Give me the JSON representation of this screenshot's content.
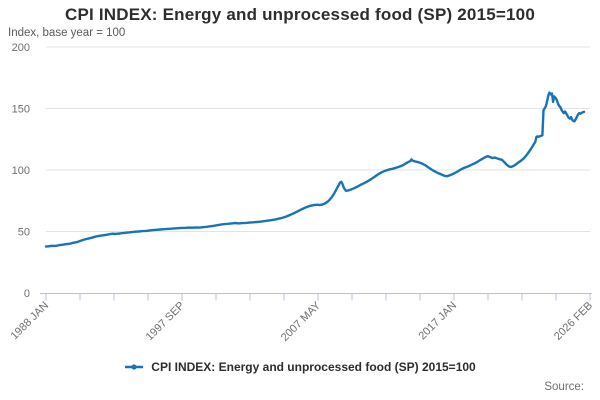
{
  "header": {
    "title": "CPI INDEX: Energy and unprocessed food (SP) 2015=100",
    "subtitle": "Index, base year = 100"
  },
  "legend": {
    "label": "CPI INDEX: Energy and unprocessed food (SP) 2015=100"
  },
  "footer": {
    "source_label": "Source:"
  },
  "colors": {
    "line": "#1774b6",
    "grid": "#e3e3e3",
    "axis": "#b4c3dc",
    "title_text": "#2e2e2e",
    "muted_text": "#6f6f6f"
  },
  "chart_data": {
    "type": "line",
    "title": "CPI INDEX: Energy and unprocessed food (SP) 2015=100",
    "xlabel": "",
    "ylabel": "Index, base year = 100",
    "ylim": [
      0,
      200
    ],
    "yticks": [
      0,
      50,
      100,
      150,
      200
    ],
    "xlim": [
      1988.0,
      2026.083
    ],
    "x_tick_labels": [
      "1988 JAN",
      "1997 SEP",
      "2007 MAY",
      "2017 JAN",
      "2026 FEB"
    ],
    "minor_ticks_between_labels": 3,
    "grid": "horizontal",
    "legend_position": "bottom",
    "series": [
      {
        "name": "CPI INDEX: Energy and unprocessed food (SP) 2015=100",
        "color": "#1774b6",
        "points": [
          [
            1988.0,
            37.8
          ],
          [
            1988.17,
            38.0
          ],
          [
            1988.33,
            38.2
          ],
          [
            1988.5,
            38.4
          ],
          [
            1988.67,
            38.3
          ],
          [
            1988.83,
            38.7
          ],
          [
            1989.0,
            39.0
          ],
          [
            1989.17,
            39.3
          ],
          [
            1989.33,
            39.6
          ],
          [
            1989.5,
            39.8
          ],
          [
            1989.67,
            40.1
          ],
          [
            1989.83,
            40.6
          ],
          [
            1990.0,
            41.0
          ],
          [
            1990.17,
            41.4
          ],
          [
            1990.33,
            42.0
          ],
          [
            1990.5,
            42.8
          ],
          [
            1990.67,
            43.4
          ],
          [
            1990.83,
            43.9
          ],
          [
            1991.0,
            44.4
          ],
          [
            1991.17,
            44.9
          ],
          [
            1991.33,
            45.4
          ],
          [
            1991.5,
            45.9
          ],
          [
            1991.67,
            46.3
          ],
          [
            1991.83,
            46.6
          ],
          [
            1992.0,
            46.9
          ],
          [
            1992.17,
            47.2
          ],
          [
            1992.33,
            47.5
          ],
          [
            1992.5,
            47.9
          ],
          [
            1992.67,
            48.2
          ],
          [
            1992.83,
            48.0
          ],
          [
            1993.0,
            48.2
          ],
          [
            1993.17,
            48.4
          ],
          [
            1993.33,
            48.7
          ],
          [
            1993.5,
            48.9
          ],
          [
            1993.67,
            49.1
          ],
          [
            1993.83,
            49.3
          ],
          [
            1994.0,
            49.5
          ],
          [
            1994.25,
            49.8
          ],
          [
            1994.5,
            50.0
          ],
          [
            1994.75,
            50.3
          ],
          [
            1995.0,
            50.5
          ],
          [
            1995.25,
            50.8
          ],
          [
            1995.5,
            51.1
          ],
          [
            1995.75,
            51.4
          ],
          [
            1996.0,
            51.6
          ],
          [
            1996.25,
            51.9
          ],
          [
            1996.5,
            52.1
          ],
          [
            1996.75,
            52.3
          ],
          [
            1997.0,
            52.5
          ],
          [
            1997.25,
            52.7
          ],
          [
            1997.5,
            52.9
          ],
          [
            1997.75,
            53.0
          ],
          [
            1998.0,
            53.2
          ],
          [
            1998.25,
            53.1
          ],
          [
            1998.5,
            53.3
          ],
          [
            1998.75,
            53.2
          ],
          [
            1999.0,
            53.5
          ],
          [
            1999.25,
            53.8
          ],
          [
            1999.5,
            54.2
          ],
          [
            1999.75,
            54.6
          ],
          [
            2000.0,
            55.1
          ],
          [
            2000.25,
            55.6
          ],
          [
            2000.5,
            56.0
          ],
          [
            2000.75,
            56.3
          ],
          [
            2001.0,
            56.6
          ],
          [
            2001.25,
            56.9
          ],
          [
            2001.5,
            56.6
          ],
          [
            2001.75,
            56.8
          ],
          [
            2002.0,
            57.0
          ],
          [
            2002.25,
            57.2
          ],
          [
            2002.5,
            57.5
          ],
          [
            2002.75,
            57.7
          ],
          [
            2003.0,
            58.0
          ],
          [
            2003.25,
            58.4
          ],
          [
            2003.5,
            58.8
          ],
          [
            2003.75,
            59.2
          ],
          [
            2004.0,
            59.7
          ],
          [
            2004.25,
            60.3
          ],
          [
            2004.5,
            61.0
          ],
          [
            2004.75,
            61.9
          ],
          [
            2005.0,
            63.0
          ],
          [
            2005.25,
            64.3
          ],
          [
            2005.5,
            65.7
          ],
          [
            2005.75,
            67.2
          ],
          [
            2006.0,
            68.6
          ],
          [
            2006.25,
            69.9
          ],
          [
            2006.5,
            70.9
          ],
          [
            2006.75,
            71.5
          ],
          [
            2007.0,
            71.8
          ],
          [
            2007.17,
            71.5
          ],
          [
            2007.33,
            71.9
          ],
          [
            2007.5,
            72.6
          ],
          [
            2007.67,
            73.8
          ],
          [
            2007.83,
            75.5
          ],
          [
            2008.0,
            77.8
          ],
          [
            2008.17,
            80.8
          ],
          [
            2008.33,
            84.3
          ],
          [
            2008.5,
            87.8
          ],
          [
            2008.58,
            89.8
          ],
          [
            2008.67,
            90.4
          ],
          [
            2008.75,
            88.9
          ],
          [
            2008.83,
            86.3
          ],
          [
            2008.92,
            84.2
          ],
          [
            2009.0,
            83.1
          ],
          [
            2009.17,
            83.4
          ],
          [
            2009.33,
            84.0
          ],
          [
            2009.5,
            84.8
          ],
          [
            2009.67,
            85.7
          ],
          [
            2009.83,
            86.7
          ],
          [
            2010.0,
            87.8
          ],
          [
            2010.25,
            89.2
          ],
          [
            2010.5,
            90.7
          ],
          [
            2010.75,
            92.4
          ],
          [
            2011.0,
            94.4
          ],
          [
            2011.25,
            96.4
          ],
          [
            2011.5,
            98.1
          ],
          [
            2011.75,
            99.4
          ],
          [
            2012.0,
            100.3
          ],
          [
            2012.25,
            101.0
          ],
          [
            2012.5,
            101.8
          ],
          [
            2012.75,
            102.8
          ],
          [
            2013.0,
            104.0
          ],
          [
            2013.17,
            105.2
          ],
          [
            2013.33,
            106.3
          ],
          [
            2013.5,
            107.2
          ],
          [
            2013.58,
            108.6
          ],
          [
            2013.67,
            107.6
          ],
          [
            2013.83,
            107.0
          ],
          [
            2014.0,
            106.6
          ],
          [
            2014.25,
            105.6
          ],
          [
            2014.5,
            104.2
          ],
          [
            2014.75,
            102.3
          ],
          [
            2015.0,
            100.3
          ],
          [
            2015.25,
            98.6
          ],
          [
            2015.5,
            97.2
          ],
          [
            2015.75,
            96.0
          ],
          [
            2015.92,
            95.2
          ],
          [
            2016.08,
            95.0
          ],
          [
            2016.25,
            95.6
          ],
          [
            2016.5,
            96.8
          ],
          [
            2016.75,
            98.4
          ],
          [
            2017.0,
            100.2
          ],
          [
            2017.25,
            101.6
          ],
          [
            2017.5,
            102.8
          ],
          [
            2017.75,
            104.0
          ],
          [
            2018.0,
            105.4
          ],
          [
            2018.25,
            107.0
          ],
          [
            2018.5,
            108.8
          ],
          [
            2018.75,
            110.4
          ],
          [
            2018.92,
            111.3
          ],
          [
            2019.08,
            110.6
          ],
          [
            2019.25,
            109.7
          ],
          [
            2019.42,
            110.2
          ],
          [
            2019.58,
            109.4
          ],
          [
            2019.75,
            108.8
          ],
          [
            2019.92,
            108.3
          ],
          [
            2020.08,
            106.5
          ],
          [
            2020.25,
            104.3
          ],
          [
            2020.42,
            102.8
          ],
          [
            2020.58,
            102.5
          ],
          [
            2020.75,
            103.4
          ],
          [
            2020.92,
            104.8
          ],
          [
            2021.08,
            106.2
          ],
          [
            2021.25,
            107.6
          ],
          [
            2021.42,
            109.2
          ],
          [
            2021.58,
            111.2
          ],
          [
            2021.75,
            113.8
          ],
          [
            2021.92,
            116.6
          ],
          [
            2022.08,
            119.6
          ],
          [
            2022.17,
            121.4
          ],
          [
            2022.25,
            122.6
          ],
          [
            2022.33,
            126.8
          ],
          [
            2022.42,
            127.3
          ],
          [
            2022.5,
            127.0
          ],
          [
            2022.58,
            127.5
          ],
          [
            2022.67,
            127.8
          ],
          [
            2022.75,
            128.2
          ],
          [
            2022.83,
            148.6
          ],
          [
            2022.92,
            150.3
          ],
          [
            2023.0,
            152.1
          ],
          [
            2023.08,
            155.9
          ],
          [
            2023.17,
            160.9
          ],
          [
            2023.25,
            162.9
          ],
          [
            2023.33,
            161.5
          ],
          [
            2023.42,
            162.2
          ],
          [
            2023.5,
            155.4
          ],
          [
            2023.58,
            159.8
          ],
          [
            2023.67,
            158.7
          ],
          [
            2023.75,
            157.0
          ],
          [
            2023.83,
            154.4
          ],
          [
            2023.92,
            152.2
          ],
          [
            2024.0,
            151.3
          ],
          [
            2024.08,
            149.1
          ],
          [
            2024.17,
            147.4
          ],
          [
            2024.25,
            146.2
          ],
          [
            2024.33,
            147.6
          ],
          [
            2024.42,
            146.0
          ],
          [
            2024.5,
            144.2
          ],
          [
            2024.58,
            142.6
          ],
          [
            2024.67,
            141.8
          ],
          [
            2024.75,
            143.0
          ],
          [
            2024.83,
            141.0
          ],
          [
            2024.92,
            139.8
          ],
          [
            2025.0,
            139.6
          ],
          [
            2025.08,
            141.2
          ],
          [
            2025.17,
            143.4
          ],
          [
            2025.25,
            145.2
          ],
          [
            2025.33,
            146.3
          ],
          [
            2025.42,
            145.8
          ],
          [
            2025.5,
            146.5
          ],
          [
            2025.58,
            147.0
          ],
          [
            2025.67,
            147.2
          ]
        ]
      }
    ]
  }
}
